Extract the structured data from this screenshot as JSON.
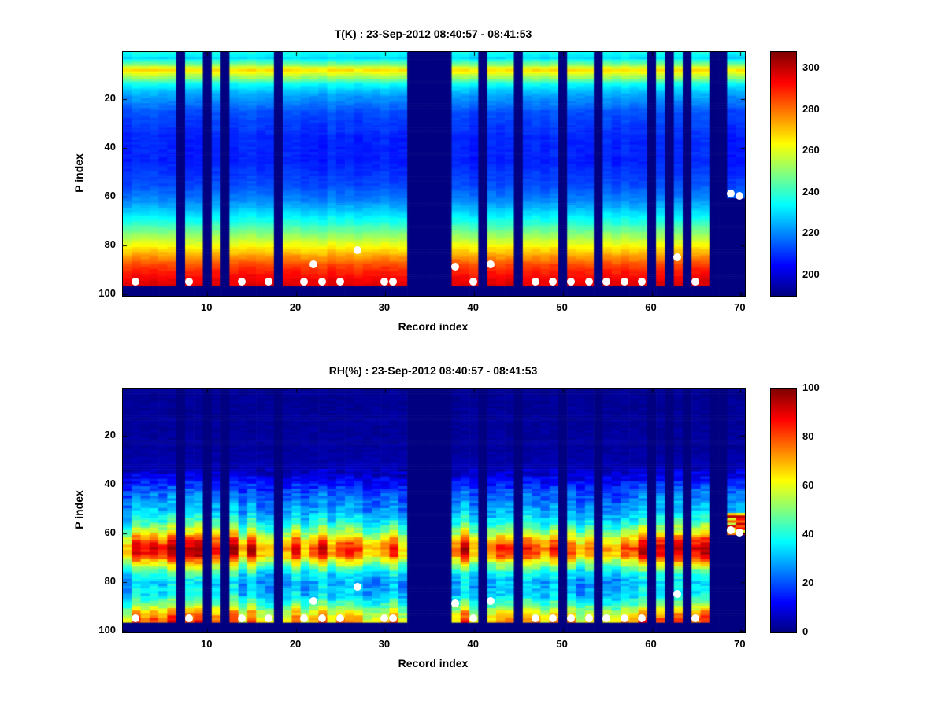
{
  "figure": {
    "background": "#ffffff",
    "text_color": "#000000",
    "colormap_name": "jet",
    "marker_color": "#ffffff"
  },
  "chart_data": [
    {
      "type": "heatmap",
      "id": "T",
      "title": "T(K) : 23-Sep-2012 08:40:57 - 08:41:53",
      "xlabel": "Record index",
      "ylabel": "P index",
      "x_range": [
        1,
        70
      ],
      "y_range": [
        1,
        100
      ],
      "x_ticks": [
        10,
        20,
        30,
        40,
        50,
        60,
        70
      ],
      "y_ticks": [
        20,
        40,
        60,
        80,
        100
      ],
      "colormap": "jet",
      "grid": false,
      "colorbar": {
        "min": 190,
        "max": 308,
        "ticks": [
          200,
          220,
          240,
          260,
          280,
          300
        ]
      },
      "surface_p": 96,
      "missing_records": [
        7,
        10,
        12,
        18,
        33,
        34,
        35,
        36,
        37,
        41,
        45,
        50,
        54,
        60,
        62,
        64,
        67,
        68
      ],
      "cutoff_records": [
        {
          "r": 69,
          "p": 60
        },
        {
          "r": 70,
          "p": 60
        }
      ],
      "profile": {
        "p": [
          1,
          3,
          5,
          8,
          11,
          14,
          18,
          25,
          35,
          45,
          55,
          62,
          70,
          76,
          80,
          84,
          88,
          92,
          95
        ],
        "v": [
          236,
          230,
          244,
          267,
          252,
          234,
          224,
          214,
          209,
          208,
          213,
          221,
          237,
          252,
          263,
          274,
          285,
          292,
          296
        ]
      },
      "markers": [
        {
          "r": 2,
          "p": 95
        },
        {
          "r": 8,
          "p": 95
        },
        {
          "r": 14,
          "p": 95
        },
        {
          "r": 17,
          "p": 95
        },
        {
          "r": 21,
          "p": 95
        },
        {
          "r": 22,
          "p": 88
        },
        {
          "r": 23,
          "p": 95
        },
        {
          "r": 25,
          "p": 95
        },
        {
          "r": 27,
          "p": 82
        },
        {
          "r": 30,
          "p": 95
        },
        {
          "r": 31,
          "p": 95
        },
        {
          "r": 38,
          "p": 89
        },
        {
          "r": 40,
          "p": 95
        },
        {
          "r": 42,
          "p": 88
        },
        {
          "r": 47,
          "p": 95
        },
        {
          "r": 49,
          "p": 95
        },
        {
          "r": 51,
          "p": 95
        },
        {
          "r": 53,
          "p": 95
        },
        {
          "r": 55,
          "p": 95
        },
        {
          "r": 57,
          "p": 95
        },
        {
          "r": 59,
          "p": 95
        },
        {
          "r": 63,
          "p": 85
        },
        {
          "r": 65,
          "p": 95
        },
        {
          "r": 69,
          "p": 59
        },
        {
          "r": 70,
          "p": 60
        }
      ]
    },
    {
      "type": "heatmap",
      "id": "RH",
      "title": "RH(%) : 23-Sep-2012 08:40:57 - 08:41:53",
      "xlabel": "Record index",
      "ylabel": "P index",
      "x_range": [
        1,
        70
      ],
      "y_range": [
        1,
        100
      ],
      "x_ticks": [
        10,
        20,
        30,
        40,
        50,
        60,
        70
      ],
      "y_ticks": [
        20,
        40,
        60,
        80,
        100
      ],
      "colormap": "jet",
      "grid": false,
      "colorbar": {
        "min": 0,
        "max": 100,
        "ticks": [
          0,
          20,
          40,
          60,
          80,
          100
        ]
      },
      "surface_p": 96,
      "near_surface_boost": true,
      "missing_records": [
        7,
        10,
        12,
        18,
        33,
        34,
        35,
        36,
        37,
        41,
        45,
        50,
        54,
        60,
        62,
        64,
        67,
        68
      ],
      "cutoff_records": [
        {
          "r": 69,
          "p": 60
        },
        {
          "r": 70,
          "p": 60
        }
      ],
      "profile": {
        "p": [
          1,
          25,
          33,
          38,
          44,
          50,
          55,
          59,
          63,
          66,
          69,
          72,
          76,
          80,
          85,
          89,
          92,
          95
        ],
        "v": [
          2,
          3,
          5,
          12,
          22,
          28,
          38,
          52,
          72,
          82,
          76,
          58,
          38,
          30,
          33,
          45,
          60,
          70
        ]
      },
      "markers": [
        {
          "r": 2,
          "p": 95
        },
        {
          "r": 8,
          "p": 95
        },
        {
          "r": 14,
          "p": 95
        },
        {
          "r": 17,
          "p": 95
        },
        {
          "r": 21,
          "p": 95
        },
        {
          "r": 22,
          "p": 88
        },
        {
          "r": 23,
          "p": 95
        },
        {
          "r": 25,
          "p": 95
        },
        {
          "r": 27,
          "p": 82
        },
        {
          "r": 30,
          "p": 95
        },
        {
          "r": 31,
          "p": 95
        },
        {
          "r": 38,
          "p": 89
        },
        {
          "r": 40,
          "p": 95
        },
        {
          "r": 42,
          "p": 88
        },
        {
          "r": 47,
          "p": 95
        },
        {
          "r": 49,
          "p": 95
        },
        {
          "r": 51,
          "p": 95
        },
        {
          "r": 53,
          "p": 95
        },
        {
          "r": 55,
          "p": 95
        },
        {
          "r": 57,
          "p": 95
        },
        {
          "r": 59,
          "p": 95
        },
        {
          "r": 63,
          "p": 85
        },
        {
          "r": 65,
          "p": 95
        },
        {
          "r": 69,
          "p": 59
        },
        {
          "r": 70,
          "p": 60
        }
      ]
    }
  ]
}
